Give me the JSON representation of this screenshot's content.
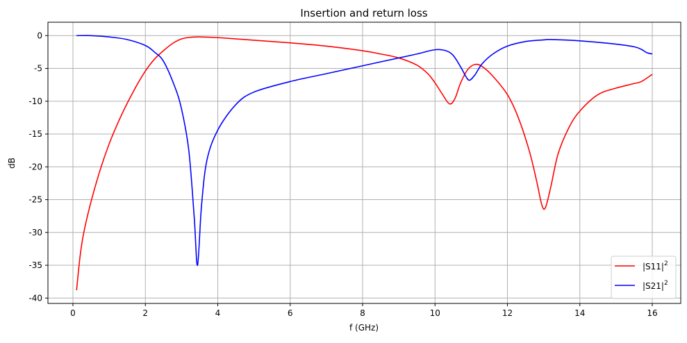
{
  "chart_data": {
    "type": "line",
    "title": "Insertion and return loss",
    "xlabel": "f (GHz)",
    "ylabel": "dB",
    "xlim": [
      -0.7,
      16.8
    ],
    "ylim": [
      -41,
      2
    ],
    "xticks": [
      0,
      2,
      4,
      6,
      8,
      10,
      12,
      14,
      16
    ],
    "yticks": [
      0,
      -5,
      -10,
      -15,
      -20,
      -25,
      -30,
      -35,
      -40
    ],
    "grid": true,
    "legend_position": "lower-right",
    "series": [
      {
        "name": "|S11|",
        "superscript": "2",
        "color": "#ff0000",
        "x": [
          0.1,
          0.2,
          0.3,
          0.5,
          0.75,
          1,
          1.25,
          1.5,
          1.75,
          2,
          2.25,
          2.5,
          2.75,
          3,
          3.25,
          3.5,
          4,
          5,
          6,
          7,
          8,
          8.5,
          9,
          9.5,
          9.8,
          10,
          10.2,
          10.4,
          10.55,
          10.7,
          10.9,
          11.1,
          11.3,
          11.6,
          12,
          12.3,
          12.6,
          12.8,
          12.95,
          13.05,
          13.2,
          13.4,
          13.7,
          14,
          14.5,
          15,
          15.5,
          15.7,
          16
        ],
        "y": [
          -38.8,
          -33.5,
          -30,
          -25.3,
          -20.5,
          -16.5,
          -13.2,
          -10.3,
          -7.7,
          -5.4,
          -3.6,
          -2.3,
          -1.2,
          -0.5,
          -0.25,
          -0.2,
          -0.3,
          -0.7,
          -1.1,
          -1.6,
          -2.3,
          -2.8,
          -3.4,
          -4.5,
          -5.8,
          -7.2,
          -8.9,
          -10.4,
          -9.6,
          -7.3,
          -5.2,
          -4.4,
          -4.7,
          -6.2,
          -9.0,
          -12.5,
          -17.5,
          -22,
          -25.8,
          -26.2,
          -23,
          -18,
          -14,
          -11.5,
          -9.0,
          -8.0,
          -7.3,
          -7.0,
          -5.9
        ]
      },
      {
        "name": "|S21|",
        "superscript": "2",
        "color": "#0000ff",
        "x": [
          0.1,
          0.5,
          1,
          1.5,
          2,
          2.25,
          2.5,
          2.8,
          3,
          3.2,
          3.35,
          3.44,
          3.55,
          3.7,
          4,
          4.5,
          5,
          6,
          7,
          8,
          9,
          9.5,
          10,
          10.3,
          10.5,
          10.7,
          10.85,
          10.95,
          11.1,
          11.3,
          11.6,
          12,
          12.5,
          13,
          13.2,
          14,
          15,
          15.5,
          15.7,
          15.85,
          16
        ],
        "y": [
          0,
          0,
          -0.2,
          -0.6,
          -1.5,
          -2.5,
          -3.9,
          -7.6,
          -11.2,
          -17.5,
          -27.7,
          -35,
          -26,
          -19,
          -14.4,
          -10.5,
          -8.6,
          -7.0,
          -5.8,
          -4.6,
          -3.4,
          -2.8,
          -2.15,
          -2.3,
          -3.0,
          -4.7,
          -6.2,
          -6.8,
          -6.0,
          -4.3,
          -2.8,
          -1.6,
          -0.9,
          -0.65,
          -0.6,
          -0.8,
          -1.3,
          -1.7,
          -2.1,
          -2.6,
          -2.8
        ]
      }
    ]
  }
}
